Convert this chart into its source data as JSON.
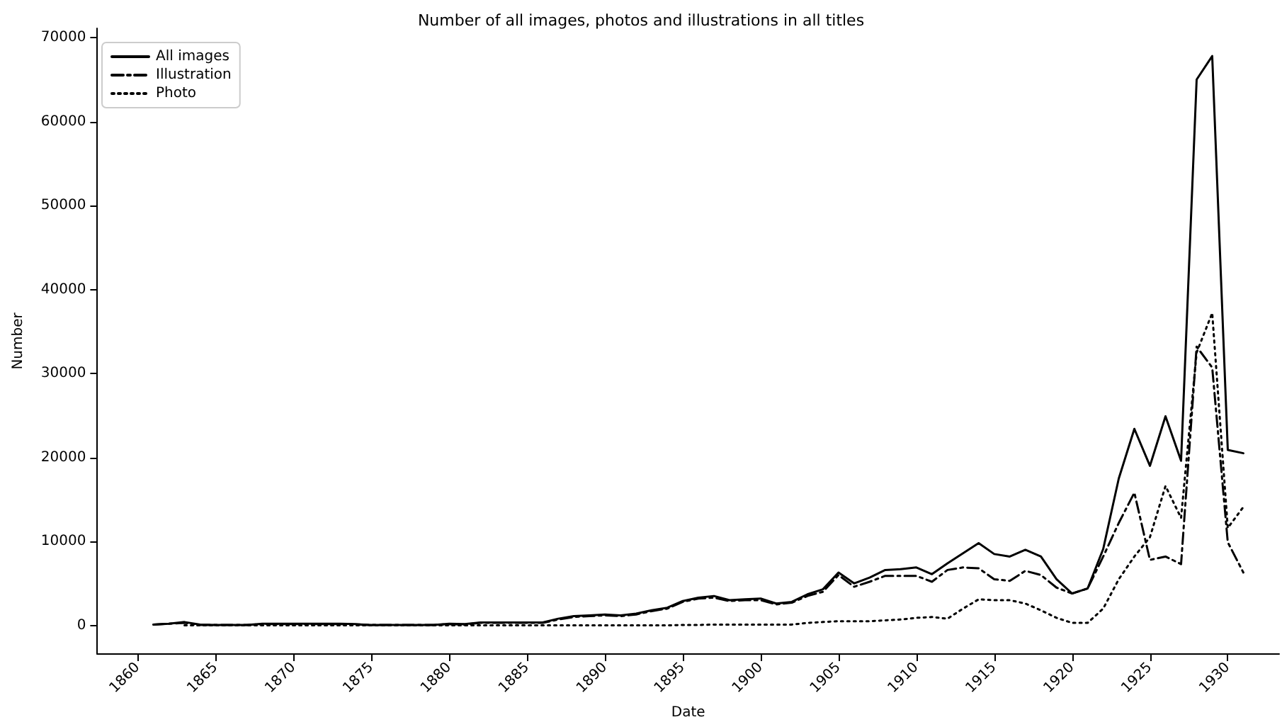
{
  "chart_data": {
    "type": "line",
    "title": "Number of all images, photos and illustrations in all titles",
    "xlabel": "Date",
    "ylabel": "Number",
    "xlim": [
      1857.4,
      1933.3
    ],
    "xticks": [
      1860,
      1865,
      1870,
      1875,
      1880,
      1885,
      1890,
      1895,
      1900,
      1905,
      1910,
      1915,
      1920,
      1925,
      1930
    ],
    "ylim": [
      -3400,
      71100
    ],
    "yticks": [
      0,
      10000,
      20000,
      30000,
      40000,
      50000,
      60000,
      70000
    ],
    "grid": false,
    "legend": "top left",
    "marker": "none",
    "series": [
      {
        "name": "All images",
        "color": "#000000",
        "line_style": "solid",
        "x": [
          1861,
          1862,
          1863,
          1864,
          1865,
          1866,
          1867,
          1868,
          1869,
          1870,
          1871,
          1872,
          1873,
          1874,
          1875,
          1876,
          1877,
          1878,
          1879,
          1880,
          1881,
          1882,
          1883,
          1884,
          1885,
          1886,
          1887,
          1888,
          1889,
          1890,
          1891,
          1892,
          1893,
          1894,
          1895,
          1896,
          1897,
          1898,
          1899,
          1900,
          1901,
          1902,
          1903,
          1904,
          1905,
          1906,
          1907,
          1908,
          1909,
          1910,
          1911,
          1912,
          1913,
          1914,
          1915,
          1916,
          1917,
          1918,
          1919,
          1920,
          1921,
          1922,
          1923,
          1924,
          1925,
          1926,
          1927,
          1928,
          1929,
          1930,
          1931
        ],
        "values": [
          100,
          200,
          400,
          100,
          50,
          50,
          50,
          200,
          200,
          200,
          200,
          200,
          200,
          150,
          50,
          50,
          50,
          50,
          50,
          200,
          150,
          350,
          350,
          350,
          350,
          350,
          800,
          1100,
          1200,
          1300,
          1200,
          1400,
          1800,
          2100,
          2900,
          3300,
          3500,
          3000,
          3100,
          3200,
          2600,
          2800,
          3700,
          4300,
          6300,
          5000,
          5700,
          6600,
          6700,
          6900,
          6100,
          7400,
          8600,
          9800,
          8500,
          8200,
          9000,
          8200,
          5500,
          3800,
          4400,
          9100,
          17500,
          23400,
          19000,
          24900,
          19600,
          65000,
          67800,
          20900,
          20500
        ]
      },
      {
        "name": "Illustration",
        "color": "#000000",
        "line_style": "dashdot",
        "x": [
          1861,
          1862,
          1863,
          1864,
          1865,
          1866,
          1867,
          1868,
          1869,
          1870,
          1871,
          1872,
          1873,
          1874,
          1875,
          1876,
          1877,
          1878,
          1879,
          1880,
          1881,
          1882,
          1883,
          1884,
          1885,
          1886,
          1887,
          1888,
          1889,
          1890,
          1891,
          1892,
          1893,
          1894,
          1895,
          1896,
          1897,
          1898,
          1899,
          1900,
          1901,
          1902,
          1903,
          1904,
          1905,
          1906,
          1907,
          1908,
          1909,
          1910,
          1911,
          1912,
          1913,
          1914,
          1915,
          1916,
          1917,
          1918,
          1919,
          1920,
          1921,
          1922,
          1923,
          1924,
          1925,
          1926,
          1927,
          1928,
          1929,
          1930,
          1931
        ],
        "values": [
          100,
          200,
          300,
          50,
          50,
          50,
          50,
          150,
          150,
          150,
          150,
          150,
          150,
          100,
          50,
          50,
          50,
          50,
          50,
          150,
          100,
          300,
          300,
          300,
          300,
          300,
          700,
          1000,
          1100,
          1200,
          1100,
          1300,
          1700,
          2000,
          2800,
          3200,
          3300,
          2900,
          3000,
          3000,
          2500,
          2700,
          3500,
          4000,
          6000,
          4600,
          5200,
          5900,
          5900,
          5900,
          5200,
          6600,
          6900,
          6800,
          5500,
          5300,
          6500,
          6000,
          4500,
          3800,
          4400,
          8200,
          12200,
          15800,
          7800,
          8200,
          7300,
          33200,
          30700,
          9900,
          6300
        ]
      },
      {
        "name": "Photo",
        "color": "#000000",
        "line_style": "dotted",
        "x": [
          1863,
          1864,
          1865,
          1866,
          1867,
          1868,
          1869,
          1870,
          1871,
          1872,
          1873,
          1874,
          1875,
          1876,
          1877,
          1878,
          1879,
          1880,
          1881,
          1882,
          1883,
          1884,
          1885,
          1886,
          1887,
          1888,
          1889,
          1890,
          1891,
          1892,
          1893,
          1894,
          1895,
          1896,
          1897,
          1898,
          1899,
          1900,
          1901,
          1902,
          1903,
          1904,
          1905,
          1906,
          1907,
          1908,
          1909,
          1910,
          1911,
          1912,
          1913,
          1914,
          1915,
          1916,
          1917,
          1918,
          1919,
          1920,
          1921,
          1922,
          1923,
          1924,
          1925,
          1926,
          1927,
          1928,
          1929,
          1930,
          1931
        ],
        "values": [
          0,
          0,
          0,
          0,
          0,
          0,
          0,
          0,
          0,
          0,
          0,
          0,
          0,
          0,
          0,
          0,
          0,
          0,
          0,
          0,
          0,
          0,
          0,
          0,
          0,
          0,
          0,
          0,
          0,
          0,
          0,
          0,
          50,
          50,
          100,
          100,
          100,
          100,
          100,
          100,
          300,
          400,
          500,
          500,
          500,
          600,
          700,
          900,
          1000,
          800,
          2000,
          3100,
          3000,
          3000,
          2600,
          1800,
          900,
          300,
          300,
          2000,
          5500,
          8200,
          10500,
          16600,
          12800,
          32500,
          37200,
          11600,
          14100
        ]
      }
    ]
  }
}
